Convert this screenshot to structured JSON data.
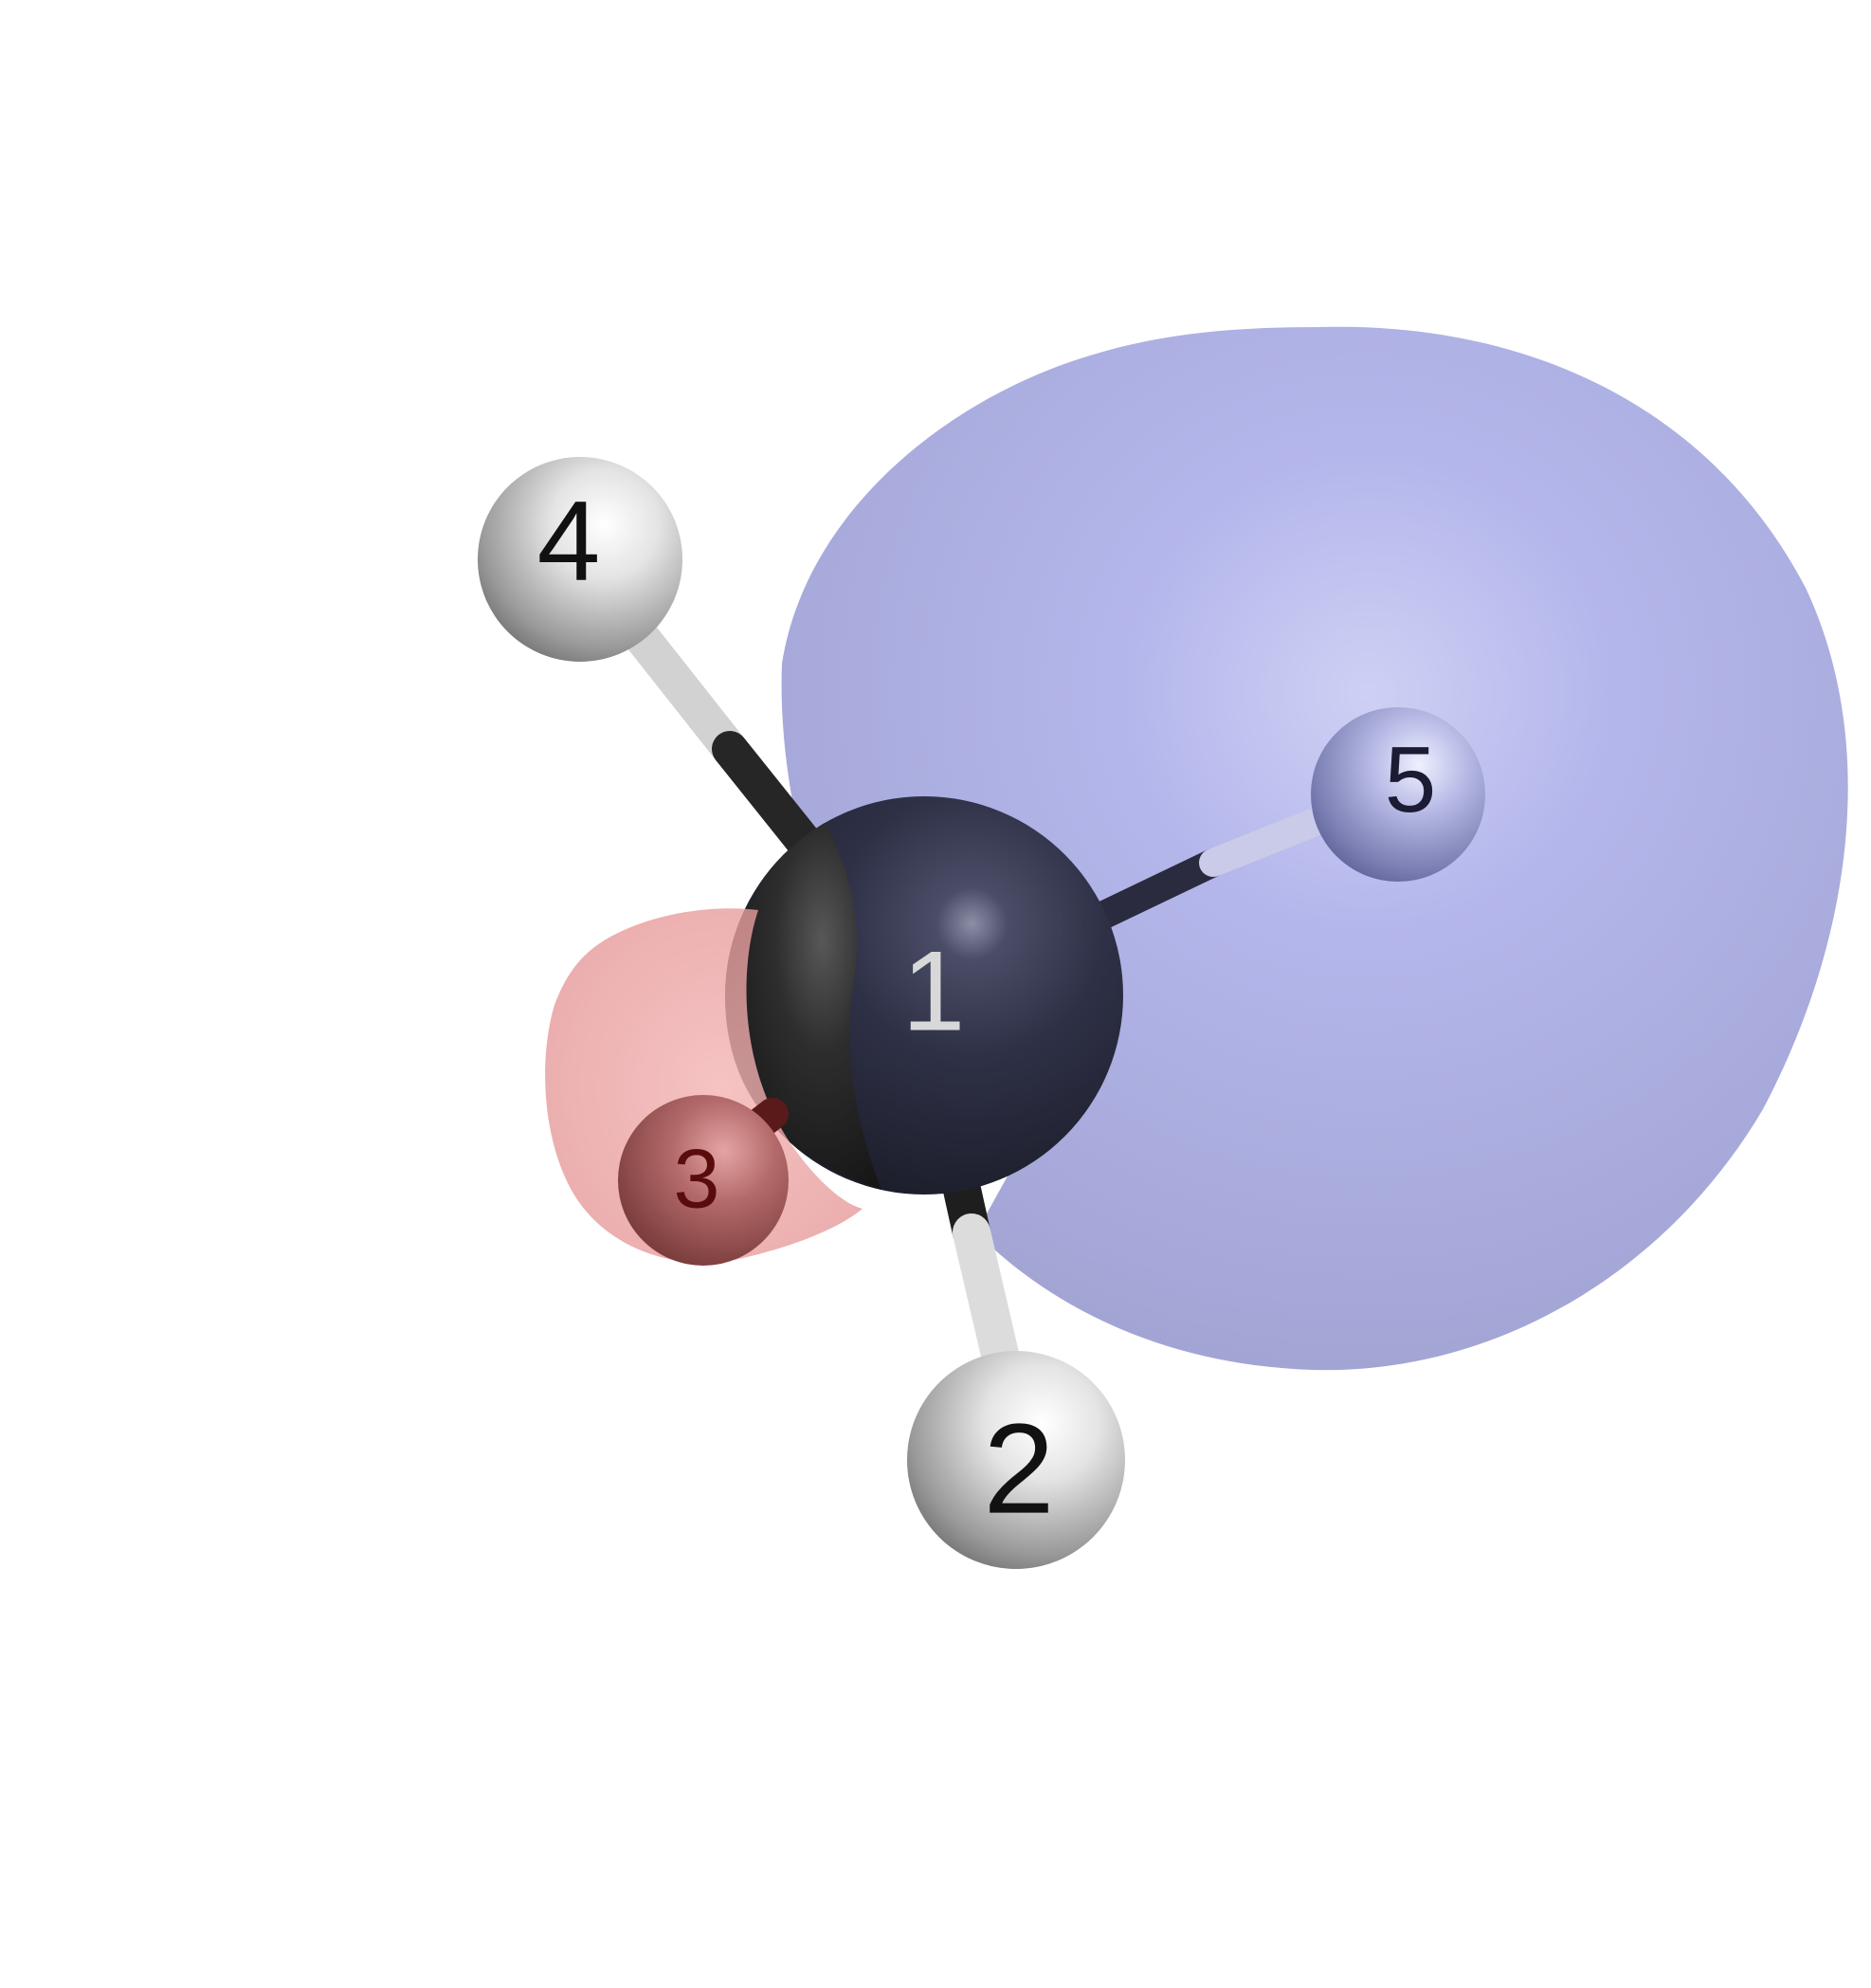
{
  "colors": {
    "background": "#ffffff",
    "orbital_positive_lobe": "#8f93d0",
    "orbital_negative_lobe": "#e79a9a",
    "central_atom": "#2d2f45",
    "hydrogen_atom": "#e7e7e7",
    "label_dark": "#111111",
    "label_light": "#d8d8d8",
    "label_on_red": "#5a0c0c",
    "label_on_blue": "#1b1c33"
  },
  "atoms": [
    {
      "id": "atom-1",
      "label": "1",
      "element": "central",
      "icon": "central-atom-sphere"
    },
    {
      "id": "atom-2",
      "label": "2",
      "element": "hydrogen",
      "icon": "hydrogen-atom-sphere"
    },
    {
      "id": "atom-3",
      "label": "3",
      "element": "hydrogen",
      "icon": "hydrogen-atom-sphere"
    },
    {
      "id": "atom-4",
      "label": "4",
      "element": "hydrogen",
      "icon": "hydrogen-atom-sphere"
    },
    {
      "id": "atom-5",
      "label": "5",
      "element": "hydrogen",
      "icon": "hydrogen-atom-sphere"
    }
  ],
  "bonds": [
    {
      "from": "1",
      "to": "2"
    },
    {
      "from": "1",
      "to": "3"
    },
    {
      "from": "1",
      "to": "4"
    },
    {
      "from": "1",
      "to": "5"
    }
  ],
  "orbital_lobes": [
    {
      "name": "positive-lobe",
      "sign": "positive",
      "color": "#8f93d0"
    },
    {
      "name": "negative-lobe",
      "sign": "negative",
      "color": "#e79a9a"
    }
  ]
}
